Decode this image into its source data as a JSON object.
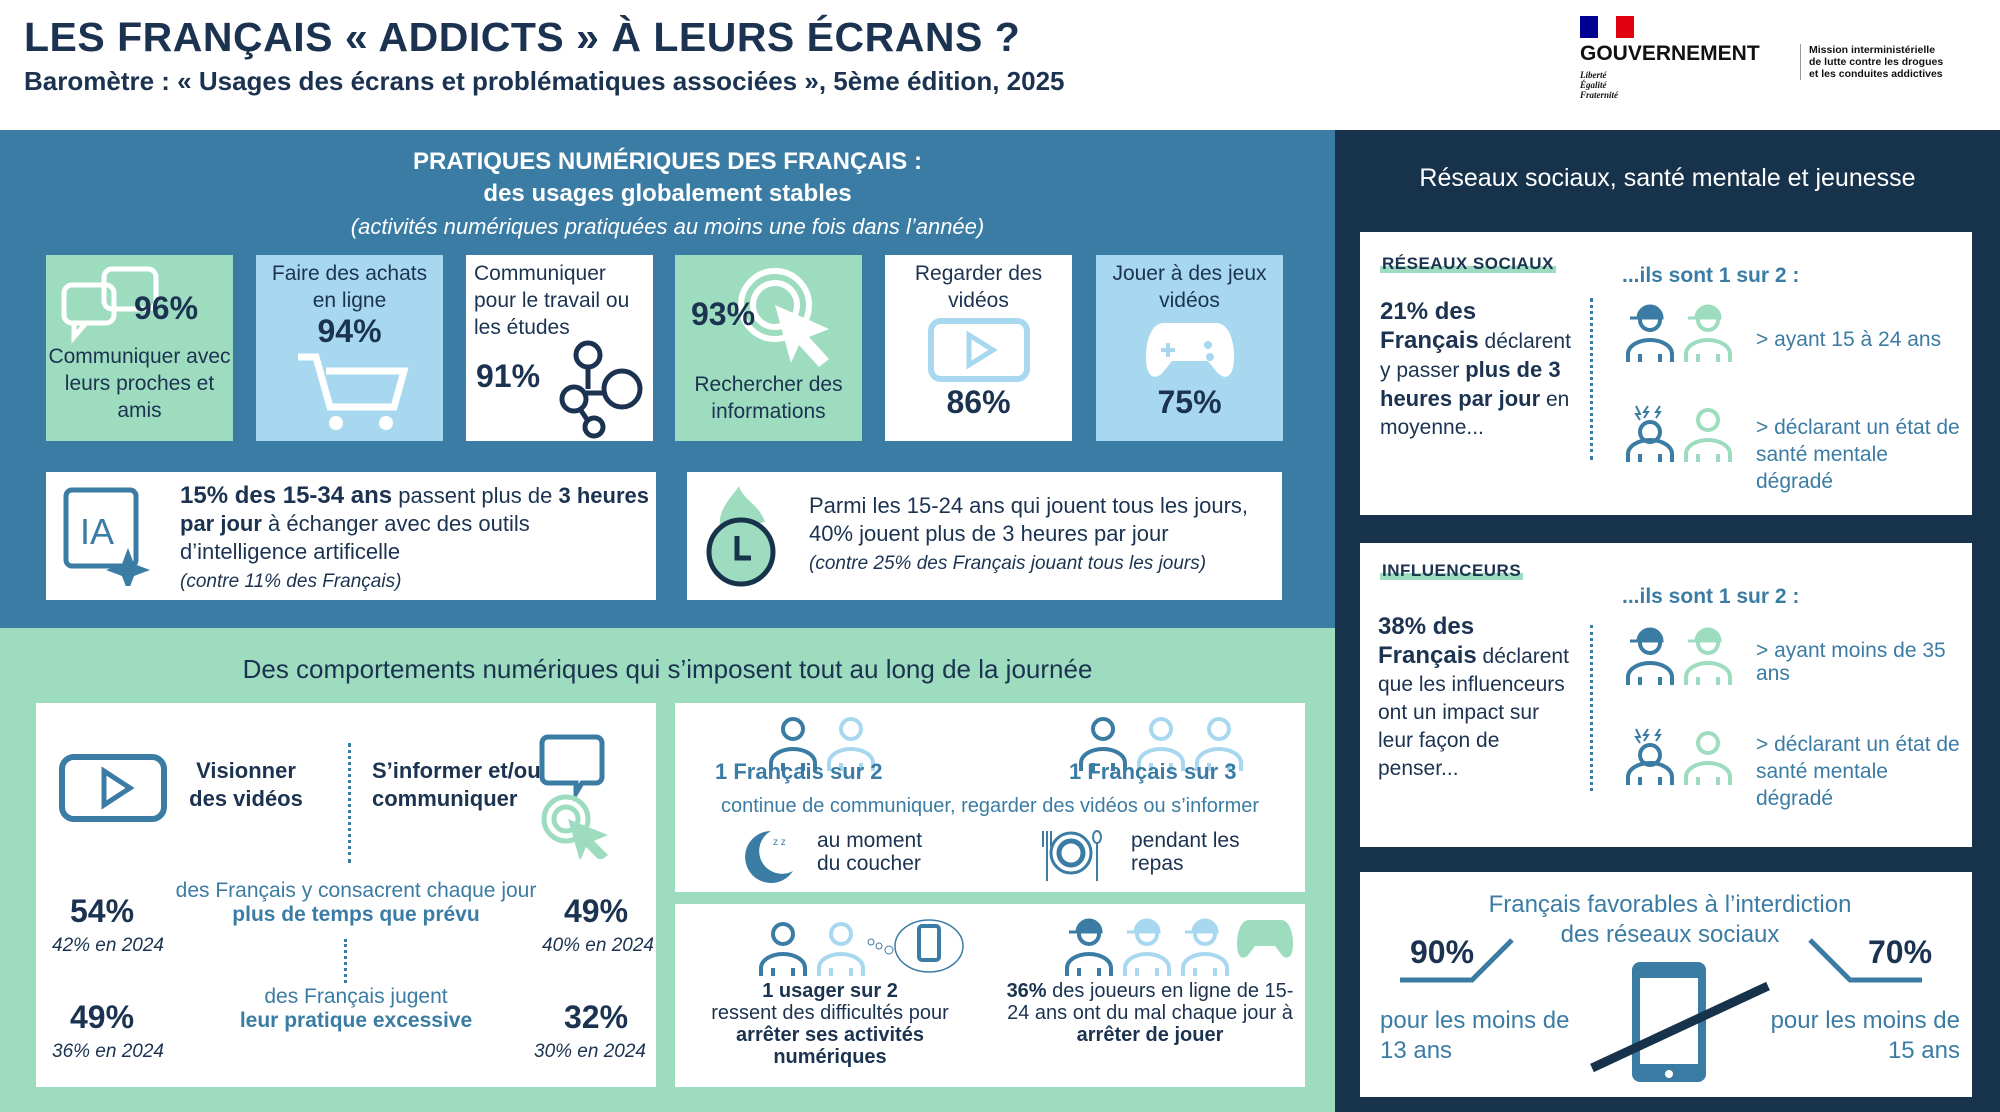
{
  "header": {
    "title": "LES FRANÇAIS « ADDICTS » À LEURS ÉCRANS ?",
    "subtitle": "Baromètre : « Usages des écrans et problématiques associées », 5ème édition, 2025",
    "logo": {
      "gov": "GOUVERNEMENT",
      "devise": [
        "Liberté",
        "Égalité",
        "Fraternité"
      ],
      "mission": [
        "Mission interministérielle",
        "de lutte contre les drogues",
        "et les conduites addictives"
      ],
      "flag_colors": [
        "#000091",
        "#ffffff",
        "#e1000f"
      ]
    }
  },
  "pratiques": {
    "title": "PRATIQUES NUMÉRIQUES DES FRANÇAIS :",
    "subtitle": "des usages globalement stables",
    "note": "(activités numériques pratiquées au moins une fois dans l’année)",
    "tiles": [
      {
        "pct": "96%",
        "label": "Communiquer avec leurs proches et amis",
        "icon": "chat-bubbles-icon"
      },
      {
        "pct": "94%",
        "label": "Faire des achats en ligne",
        "icon": "shopping-cart-icon"
      },
      {
        "pct": "91%",
        "label": "Communiquer pour le travail ou les études",
        "icon": "network-icon"
      },
      {
        "pct": "93%",
        "label": "Rechercher des informations",
        "icon": "cursor-click-icon"
      },
      {
        "pct": "86%",
        "label": "Regarder des vidéos",
        "icon": "video-play-icon"
      },
      {
        "pct": "75%",
        "label": "Jouer à des jeux vidéos",
        "icon": "gamepad-icon"
      }
    ],
    "ia": {
      "icon_text": "IA",
      "b1": "15% des 15-34 ans",
      "t1": " passent plus de ",
      "b2": "3 heures par jour",
      "t2": " à échanger avec des outils d’intelligence artificelle",
      "note": "(contre 11% des Français)"
    },
    "jeux": {
      "text": "Parmi les 15-24 ans qui jouent tous les jours, 40% jouent plus de 3 heures par jour",
      "note": "(contre 25% des Français jouant tous les jours)"
    }
  },
  "comportements": {
    "title": "Des comportements numériques qui s’imposent tout au long de la journée",
    "videos": "Visionner des vidéos",
    "informer": "S’informer et/ou communiquer",
    "row1": {
      "text": "des Français y consacrent chaque jour",
      "bold": "plus de temps que prévu",
      "left": "54%",
      "left_prev": "42% en 2024",
      "right": "49%",
      "right_prev": "40% en 2024"
    },
    "row2": {
      "text": "des Français jugent",
      "bold": "leur pratique excessive",
      "left": "49%",
      "left_prev": "36% en 2024",
      "right": "32%",
      "right_prev": "30% en 2024"
    },
    "ratio1": "1 Français sur 2",
    "ratio2": "1 Français sur 3",
    "continue": "continue de communiquer, regarder des vidéos ou s’informer",
    "coucher": "au moment du coucher",
    "repas": "pendant les repas",
    "usager": {
      "b": "1 usager sur 2",
      "t": "ressent des difficultés pour ",
      "b2": "arrêter ses activités numériques"
    },
    "joueurs": {
      "b": "36%",
      "t": " des joueurs en ligne de 15-24 ans ont du mal chaque jour à ",
      "b2": "arrêter de jouer"
    }
  },
  "right": {
    "title": "Réseaux sociaux, santé mentale et jeunesse",
    "reseaux": {
      "tag": "RÉSEAUX SOCIAUX",
      "b1": "21% des Français",
      "t1": " déclarent y passer ",
      "b2": "plus de 3 heures par jour",
      "t2": " en moyenne...",
      "head": "...ils sont 1 sur 2 :",
      "p1": "> ayant 15 à 24 ans",
      "p2": "> déclarant un état de santé mentale dégradé"
    },
    "influenceurs": {
      "tag": "INFLUENCEURS",
      "b1": "38% des Français",
      "t1": " déclarent que les influenceurs ont un impact sur leur façon de penser...",
      "head": "...ils sont 1 sur 2 :",
      "p1": "> ayant moins de 35 ans",
      "p2": "> déclarant un état de santé mentale dégradé"
    },
    "interdiction": {
      "title": "Français favorables à l’interdiction des réseaux sociaux",
      "left": "90%",
      "left_label": "pour les moins de 13 ans",
      "right": "70%",
      "right_label": "pour les moins de 15 ans"
    }
  },
  "colors": {
    "blue": "#3b7ca4",
    "green": "#9edcbf",
    "lightblue": "#a8d8f0",
    "navy": "#17334b",
    "text": "#1b3350"
  }
}
